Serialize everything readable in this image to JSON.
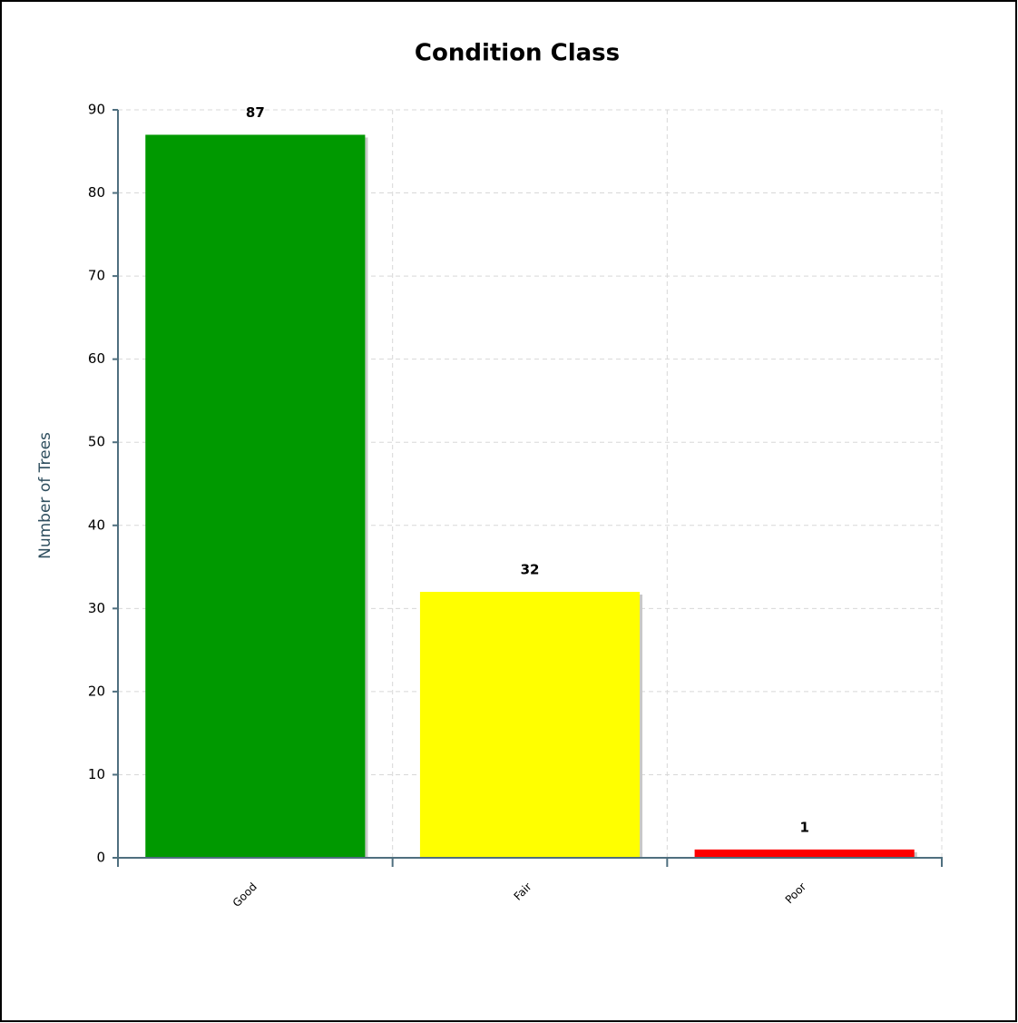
{
  "chart_data": {
    "type": "bar",
    "title": "Condition Class",
    "y_label": "Number of Trees",
    "categories": [
      "Good",
      "Fair",
      "Poor"
    ],
    "values": [
      87,
      32,
      1
    ],
    "colors": [
      "#009900",
      "#ffff00",
      "#ff0000"
    ],
    "ylim": [
      0,
      90
    ],
    "yticks": [
      0,
      10,
      20,
      30,
      40,
      50,
      60,
      70,
      80,
      90
    ],
    "grid": true
  }
}
